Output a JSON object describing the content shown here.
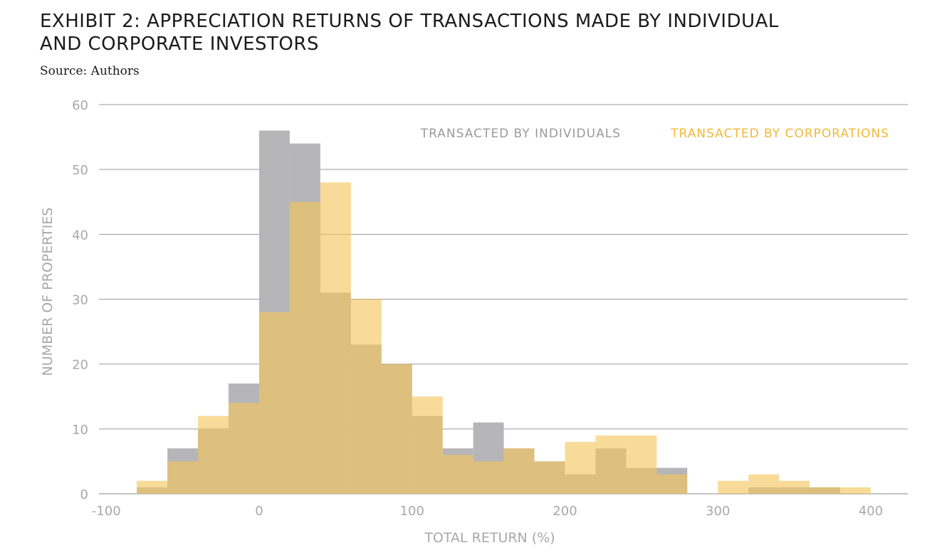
{
  "header": {
    "title_line1": "EXHIBIT 2: APPRECIATION RETURNS OF TRANSACTIONS MADE BY INDIVIDUAL",
    "title_line2": "AND CORPORATE INVESTORS",
    "source": "Source: Authors"
  },
  "chart_data": {
    "type": "bar",
    "subtype": "overlapping-histogram",
    "title": "EXHIBIT 2: APPRECIATION RETURNS OF TRANSACTIONS MADE BY INDIVIDUAL AND CORPORATE INVESTORS",
    "xlabel": "TOTAL RETURN (%)",
    "ylabel": "NUMBER OF PROPERTIES",
    "xlim": [
      -100,
      420
    ],
    "ylim": [
      0,
      60
    ],
    "xticks": [
      -100,
      0,
      100,
      200,
      300,
      400
    ],
    "yticks": [
      0,
      10,
      20,
      30,
      40,
      50,
      60
    ],
    "grid": "horizontal",
    "legend_position": "top-right",
    "bin_width": 20,
    "bin_starts": [
      -80,
      -60,
      -40,
      -20,
      0,
      20,
      40,
      60,
      80,
      100,
      120,
      140,
      160,
      180,
      200,
      220,
      240,
      260,
      280,
      300,
      320,
      340,
      360,
      380
    ],
    "series": [
      {
        "name": "TRANSACTED BY INDIVIDUALS",
        "color": "#b6b6b9",
        "values": [
          1,
          7,
          10,
          17,
          56,
          54,
          31,
          23,
          20,
          12,
          7,
          11,
          7,
          5,
          3,
          7,
          4,
          4,
          0,
          0,
          1,
          1,
          1,
          0
        ]
      },
      {
        "name": "TRANSACTED BY CORPORATIONS",
        "color": "#f5c55a",
        "values": [
          2,
          5,
          12,
          14,
          28,
          45,
          48,
          30,
          20,
          15,
          6,
          5,
          7,
          5,
          8,
          9,
          9,
          3,
          0,
          2,
          3,
          2,
          1,
          1
        ]
      }
    ]
  }
}
